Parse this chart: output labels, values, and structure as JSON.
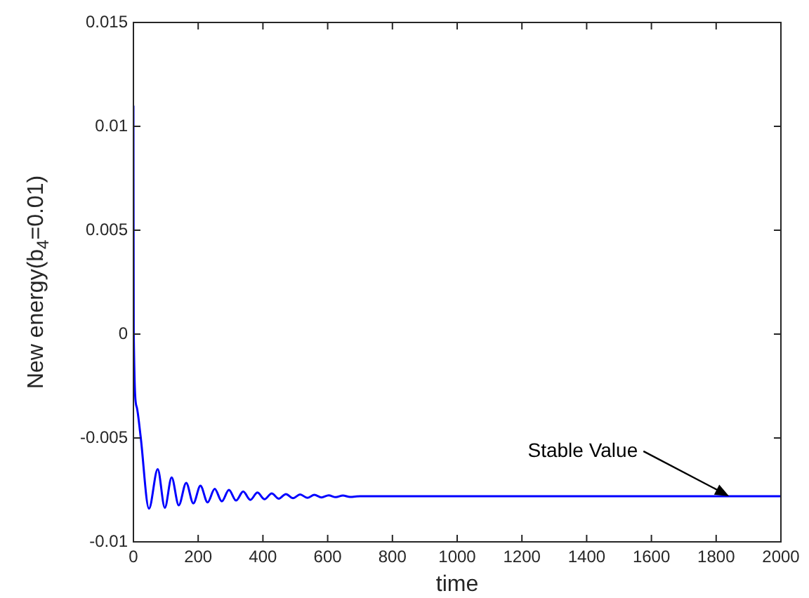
{
  "chart_data": {
    "type": "line",
    "xlabel": "time",
    "ylabel": "New energy(b$_{4}$=0.01)",
    "x": [
      0,
      1,
      10,
      22,
      48,
      75,
      97,
      118,
      140,
      163,
      185,
      207,
      229,
      251,
      273,
      295,
      317,
      339,
      361,
      383,
      405,
      427,
      449,
      471,
      493,
      515,
      537,
      559,
      581,
      603,
      625,
      647,
      669,
      700,
      2000
    ],
    "series": [
      {
        "color": "#0000ff",
        "values": [
          0.011,
          0.0,
          -0.0035,
          -0.0049,
          -0.0084,
          -0.0065,
          -0.00836,
          -0.0069,
          -0.00824,
          -0.00716,
          -0.00815,
          -0.0073,
          -0.0081,
          -0.00745,
          -0.00805,
          -0.0075,
          -0.00801,
          -0.00758,
          -0.00798,
          -0.00763,
          -0.00795,
          -0.00767,
          -0.00792,
          -0.0077,
          -0.0079,
          -0.00772,
          -0.00788,
          -0.00774,
          -0.00786,
          -0.00776,
          -0.00785,
          -0.00777,
          -0.00784,
          -0.0078,
          -0.0078
        ]
      }
    ],
    "xlim": [
      0,
      2000
    ],
    "xticks": [
      0,
      200,
      400,
      600,
      800,
      1000,
      1200,
      1400,
      1600,
      1800,
      2000
    ],
    "ylim": [
      -0.01,
      0.015
    ],
    "yticks": [
      -0.01,
      -0.005,
      0,
      0.005,
      0.01,
      0.015
    ],
    "grid": false,
    "legend": false,
    "marker": "none",
    "line_style": "solid",
    "annotations": [
      {
        "text": "Stable Value",
        "x": 1840,
        "y": -0.0078
      }
    ]
  }
}
